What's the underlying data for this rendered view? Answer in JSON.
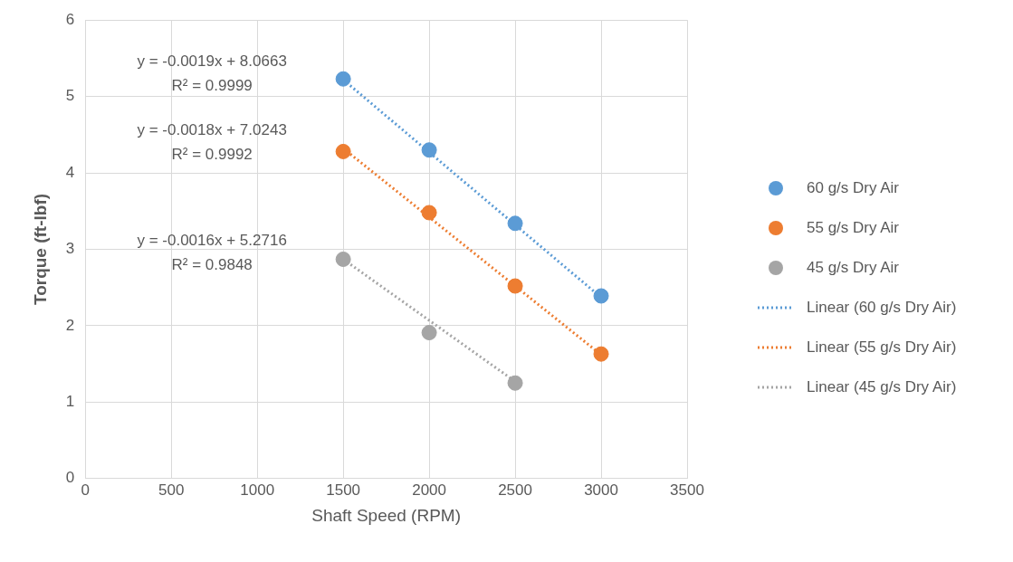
{
  "chart_data": {
    "type": "scatter",
    "xlabel": "Shaft Speed (RPM)",
    "ylabel": "Torque (ft-lbf)",
    "xlim": [
      0,
      3500
    ],
    "xticks": [
      0,
      500,
      1000,
      1500,
      2000,
      2500,
      3000,
      3500
    ],
    "ylim": [
      0,
      6
    ],
    "yticks": [
      0,
      1,
      2,
      3,
      4,
      5,
      6
    ],
    "grid": true,
    "legend": "right",
    "marker": "circle",
    "series": [
      {
        "name": "60 g/s Dry Air",
        "color": "#5b9bd5",
        "x": [
          1500,
          2000,
          2500,
          3000
        ],
        "values": [
          5.23,
          4.3,
          3.34,
          2.39
        ]
      },
      {
        "name": "55 g/s Dry Air",
        "color": "#ed7d31",
        "x": [
          1500,
          2000,
          2500,
          3000
        ],
        "values": [
          4.28,
          3.48,
          2.52,
          1.63
        ]
      },
      {
        "name": "45 g/s Dry Air",
        "color": "#a5a5a5",
        "x": [
          1500,
          2000,
          2500
        ],
        "values": [
          2.87,
          1.91,
          1.25
        ]
      },
      {
        "name": "Linear (60 g/s Dry Air)",
        "type": "line",
        "line_style": "dotted",
        "marker": "none",
        "color": "#5b9bd5",
        "x": [
          1500,
          3000
        ],
        "values": [
          5.22,
          2.37
        ]
      },
      {
        "name": "Linear (55 g/s Dry Air)",
        "type": "line",
        "line_style": "dotted",
        "marker": "none",
        "color": "#ed7d31",
        "x": [
          1500,
          3000
        ],
        "values": [
          4.32,
          1.62
        ]
      },
      {
        "name": "Linear (45 g/s Dry Air)",
        "type": "line",
        "line_style": "dotted",
        "marker": "none",
        "color": "#a5a5a5",
        "x": [
          1500,
          2500
        ],
        "values": [
          2.87,
          1.27
        ]
      }
    ],
    "annotations": [
      "y = -0.0019x + 8.0663\nR² = 0.9999",
      "y = -0.0018x + 7.0243\nR² = 0.9992",
      "y = -0.0016x + 5.2716\nR² = 0.9848"
    ]
  }
}
